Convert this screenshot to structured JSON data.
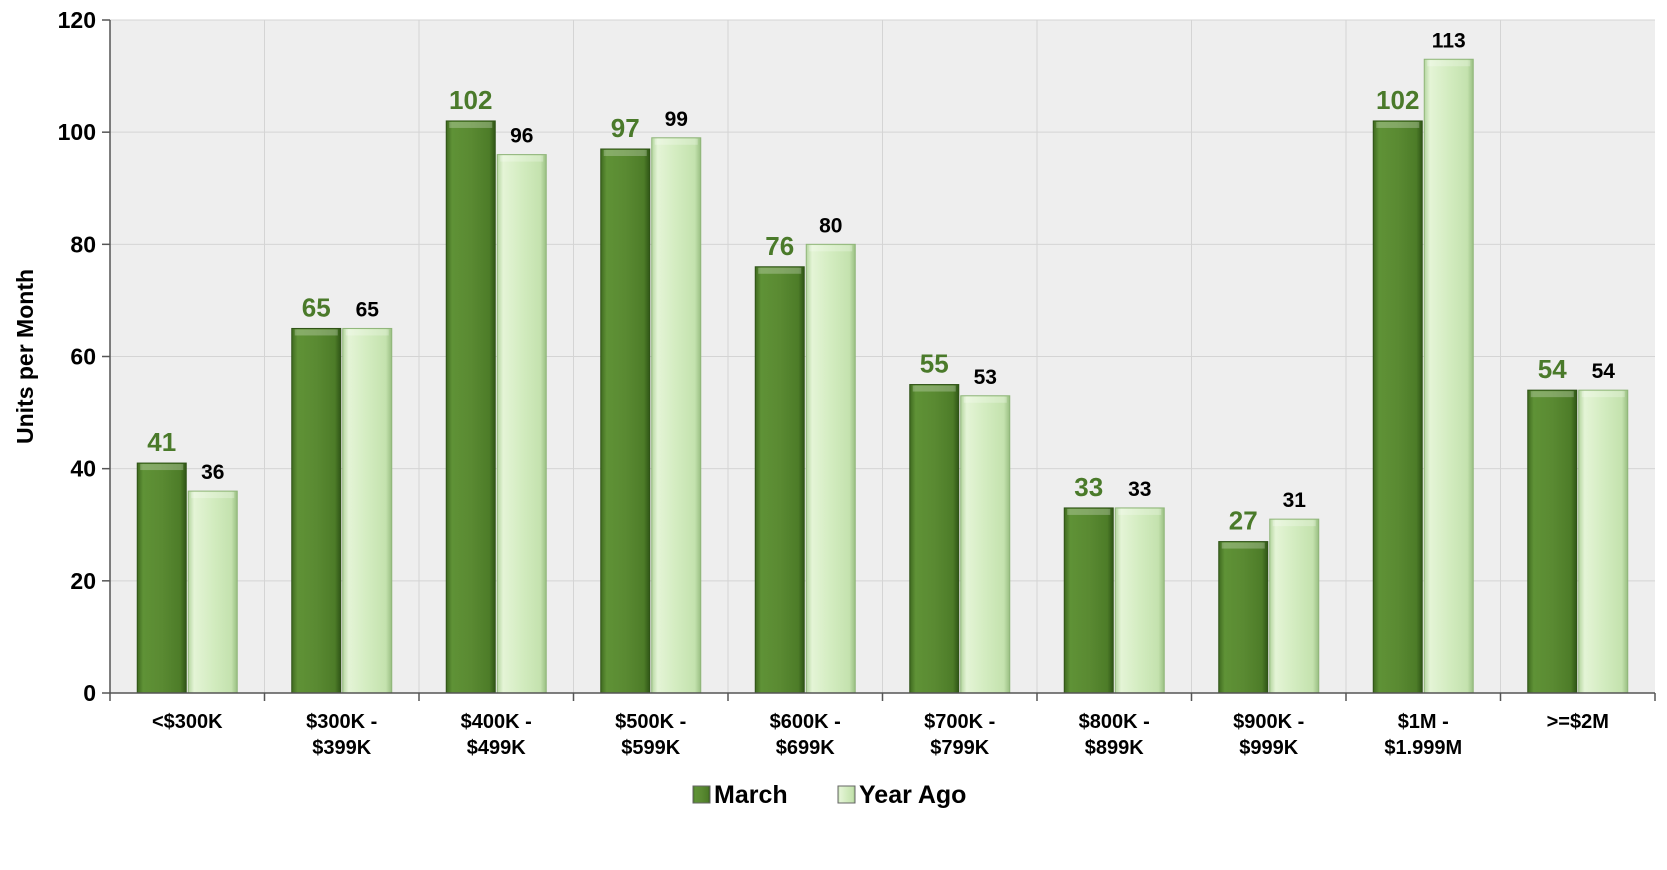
{
  "chart_data": {
    "type": "bar",
    "categories": [
      [
        "<$300K"
      ],
      [
        "$300K -",
        "$399K"
      ],
      [
        "$400K -",
        "$499K"
      ],
      [
        "$500K -",
        "$599K"
      ],
      [
        "$600K -",
        "$699K"
      ],
      [
        "$700K -",
        "$799K"
      ],
      [
        "$800K -",
        "$899K"
      ],
      [
        "$900K -",
        "$999K"
      ],
      [
        "$1M -",
        "$1.999M"
      ],
      [
        ">=$2M"
      ]
    ],
    "series": [
      {
        "name": "March",
        "values": [
          41,
          65,
          102,
          97,
          76,
          55,
          33,
          27,
          102,
          54
        ],
        "color": "#5a8a32"
      },
      {
        "name": "Year Ago",
        "values": [
          36,
          65,
          96,
          99,
          80,
          53,
          33,
          31,
          113,
          54
        ],
        "color": "#d3ecc0"
      }
    ],
    "ylabel": "Units per Month",
    "xlabel": "",
    "ylim": [
      0,
      120
    ],
    "yticks": [
      0,
      20,
      40,
      60,
      80,
      100,
      120
    ],
    "grid": true,
    "legend": "bottom",
    "plot_background": "#eeeeee"
  }
}
